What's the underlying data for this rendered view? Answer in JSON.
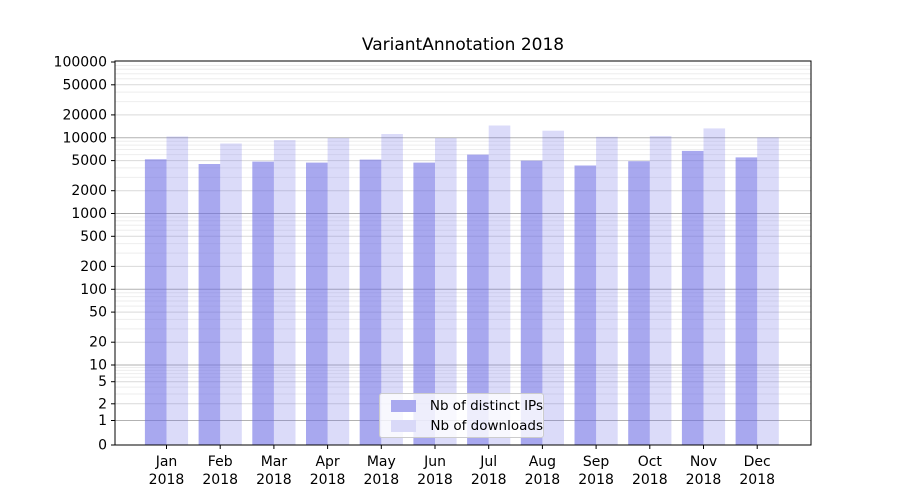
{
  "title": "VariantAnnotation 2018",
  "legend": {
    "position": "lower center",
    "items": [
      {
        "label": "Nb of distinct IPs",
        "series_key": "ips"
      },
      {
        "label": "Nb of downloads",
        "series_key": "downloads"
      }
    ]
  },
  "colors": {
    "bar_base": "#6969e4",
    "ips_bar_rgba": "rgba(105,105,228,0.58)",
    "downloads_bar_rgba": "rgba(105,105,228,0.24)",
    "ips_bar_flat": "#a9a9ef",
    "downloads_bar_flat": "#d9d9f8",
    "grid_major": "#b2b2b2",
    "grid_mid": "#d9d9d9",
    "grid_minor": "#eeeeee",
    "axis": "#000000",
    "text": "#000000"
  },
  "chart_data": {
    "type": "bar",
    "title": "VariantAnnotation 2018",
    "months": [
      "Jan",
      "Feb",
      "Mar",
      "Apr",
      "May",
      "Jun",
      "Jul",
      "Aug",
      "Sep",
      "Oct",
      "Nov",
      "Dec"
    ],
    "year": "2018",
    "x_categories": [
      "Jan 2018",
      "Feb 2018",
      "Mar 2018",
      "Apr 2018",
      "May 2018",
      "Jun 2018",
      "Jul 2018",
      "Aug 2018",
      "Sep 2018",
      "Oct 2018",
      "Nov 2018",
      "Dec 2018"
    ],
    "series": [
      {
        "name": "Nb of distinct IPs",
        "values": [
          5200,
          4500,
          4850,
          4700,
          5150,
          4700,
          6000,
          5000,
          4300,
          4900,
          6700,
          5500
        ]
      },
      {
        "name": "Nb of downloads",
        "values": [
          10400,
          8400,
          9300,
          9900,
          11200,
          9900,
          14500,
          12400,
          10300,
          10500,
          13300,
          10100
        ]
      }
    ],
    "yticks": [
      0,
      1,
      2,
      5,
      10,
      20,
      50,
      100,
      200,
      500,
      1000,
      2000,
      5000,
      10000,
      20000,
      50000,
      100000
    ],
    "ylim": [
      0,
      100000
    ],
    "yscale": "log (with 0 at baseline)",
    "xlabel": "",
    "ylabel": "",
    "grid": "horizontal",
    "legend_position": "lower center"
  }
}
